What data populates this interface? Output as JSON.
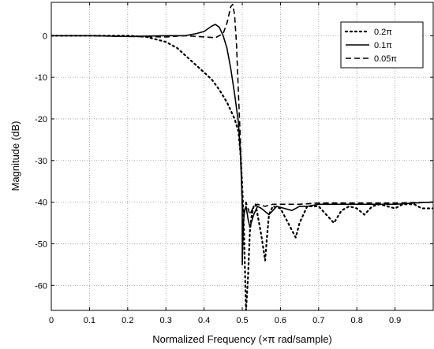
{
  "chart_data": {
    "type": "line",
    "xlabel": "Normalized Frequency (×π  rad/sample)",
    "ylabel": "Magnitude (dB)",
    "xlim": [
      0,
      1
    ],
    "ylim": [
      -66,
      8
    ],
    "x_ticks": [
      "0",
      "0.1",
      "0.2",
      "0.3",
      "0.4",
      "0.5",
      "0.6",
      "0.7",
      "0.8",
      "0.9"
    ],
    "y_ticks": [
      "0",
      "-10",
      "-20",
      "-30",
      "-40",
      "-50",
      "-60"
    ],
    "grid": true,
    "legend_position": "top-right",
    "series": [
      {
        "name": "0.2π",
        "style": "dotted",
        "points": [
          [
            0,
            0
          ],
          [
            0.1,
            0
          ],
          [
            0.2,
            0
          ],
          [
            0.25,
            -0.3
          ],
          [
            0.3,
            -1.5
          ],
          [
            0.33,
            -3
          ],
          [
            0.36,
            -5.5
          ],
          [
            0.39,
            -8
          ],
          [
            0.42,
            -10.5
          ],
          [
            0.44,
            -13
          ],
          [
            0.46,
            -16
          ],
          [
            0.48,
            -20
          ],
          [
            0.49,
            -23
          ],
          [
            0.495,
            -28
          ],
          [
            0.5,
            -36
          ],
          [
            0.505,
            -48
          ],
          [
            0.508,
            -60
          ],
          [
            0.51,
            -66
          ],
          [
            0.515,
            -58
          ],
          [
            0.52,
            -47
          ],
          [
            0.525,
            -43
          ],
          [
            0.53,
            -41
          ],
          [
            0.535,
            -40.5
          ],
          [
            0.54,
            -43
          ],
          [
            0.55,
            -48
          ],
          [
            0.56,
            -54
          ],
          [
            0.565,
            -48
          ],
          [
            0.57,
            -43
          ],
          [
            0.58,
            -41
          ],
          [
            0.6,
            -41.5
          ],
          [
            0.62,
            -45
          ],
          [
            0.64,
            -48.5
          ],
          [
            0.65,
            -45
          ],
          [
            0.67,
            -41
          ],
          [
            0.7,
            -41
          ],
          [
            0.72,
            -43
          ],
          [
            0.74,
            -45
          ],
          [
            0.76,
            -42
          ],
          [
            0.78,
            -41
          ],
          [
            0.8,
            -41.5
          ],
          [
            0.82,
            -43
          ],
          [
            0.84,
            -41
          ],
          [
            0.86,
            -40.5
          ],
          [
            0.88,
            -41
          ],
          [
            0.9,
            -41.5
          ],
          [
            0.92,
            -40.5
          ],
          [
            0.95,
            -40.5
          ],
          [
            0.97,
            -41.5
          ],
          [
            1,
            -41.5
          ]
        ]
      },
      {
        "name": "0.1π",
        "style": "solid",
        "points": [
          [
            0,
            0
          ],
          [
            0.05,
            0
          ],
          [
            0.1,
            0
          ],
          [
            0.2,
            -0.2
          ],
          [
            0.3,
            0
          ],
          [
            0.35,
            0
          ],
          [
            0.38,
            0.5
          ],
          [
            0.4,
            1
          ],
          [
            0.42,
            2.3
          ],
          [
            0.43,
            2.7
          ],
          [
            0.44,
            2
          ],
          [
            0.45,
            0
          ],
          [
            0.46,
            -3
          ],
          [
            0.47,
            -8
          ],
          [
            0.48,
            -14
          ],
          [
            0.49,
            -21
          ],
          [
            0.495,
            -28
          ],
          [
            0.5,
            -40
          ],
          [
            0.5,
            -55
          ],
          [
            0.503,
            -45
          ],
          [
            0.506,
            -42
          ],
          [
            0.51,
            -41
          ],
          [
            0.515,
            -44
          ],
          [
            0.52,
            -46
          ],
          [
            0.53,
            -43
          ],
          [
            0.54,
            -41
          ],
          [
            0.55,
            -41.5
          ],
          [
            0.57,
            -43
          ],
          [
            0.59,
            -41
          ],
          [
            0.61,
            -41.5
          ],
          [
            0.63,
            -42
          ],
          [
            0.65,
            -41
          ],
          [
            0.67,
            -41
          ],
          [
            0.7,
            -40.5
          ],
          [
            0.75,
            -40.5
          ],
          [
            0.8,
            -40.5
          ],
          [
            0.85,
            -40.5
          ],
          [
            0.9,
            -40.5
          ],
          [
            0.95,
            -40.2
          ],
          [
            1,
            -40
          ]
        ]
      },
      {
        "name": "0.05π",
        "style": "dashed",
        "points": [
          [
            0,
            0
          ],
          [
            0.1,
            0
          ],
          [
            0.2,
            -0.2
          ],
          [
            0.3,
            -0.3
          ],
          [
            0.35,
            0
          ],
          [
            0.4,
            -0.3
          ],
          [
            0.43,
            -0.5
          ],
          [
            0.45,
            0.5
          ],
          [
            0.46,
            3
          ],
          [
            0.47,
            7
          ],
          [
            0.475,
            7.5
          ],
          [
            0.48,
            5
          ],
          [
            0.485,
            -2
          ],
          [
            0.49,
            -14
          ],
          [
            0.495,
            -25
          ],
          [
            0.5,
            -41
          ],
          [
            0.505,
            -43
          ],
          [
            0.51,
            -40
          ],
          [
            0.52,
            -43
          ],
          [
            0.53,
            -41
          ],
          [
            0.54,
            -40.5
          ],
          [
            0.56,
            -41
          ],
          [
            0.58,
            -40.5
          ],
          [
            0.6,
            -40.5
          ],
          [
            0.65,
            -40.5
          ],
          [
            0.7,
            -40.2
          ],
          [
            0.8,
            -40.2
          ],
          [
            0.9,
            -40.2
          ],
          [
            1,
            -40
          ]
        ]
      }
    ]
  }
}
